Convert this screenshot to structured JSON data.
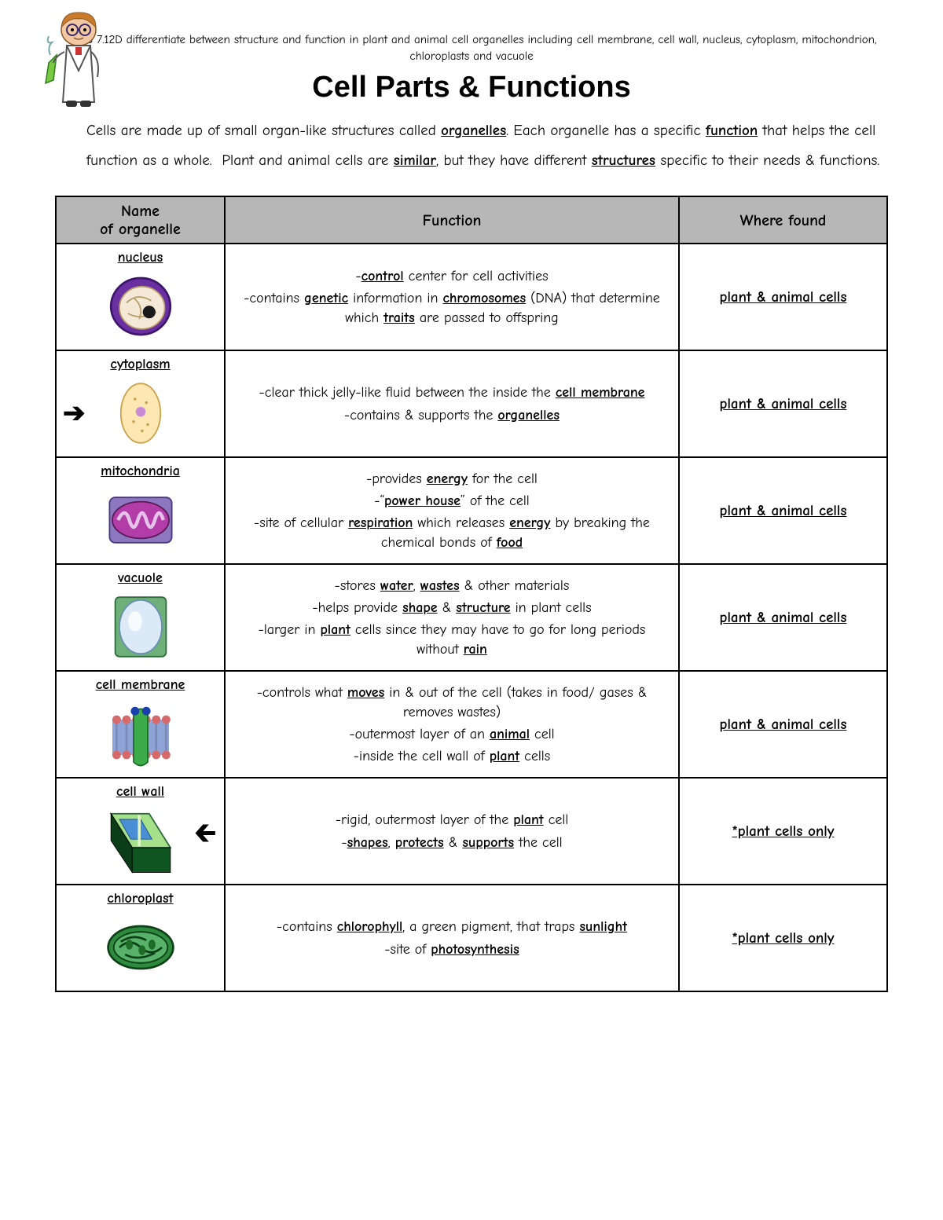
{
  "teks_line": "TEKS 7.12D differentiate between structure and function in plant and animal cell organelles including cell membrane, cell wall, nucleus, cytoplasm, mitochondrion, chloroplasts and vacuole",
  "title": "Cell Parts & Functions",
  "intro_html": "Cells are made up of small organ-like structures called <span class='ub'>organelles</span>. Each organelle has a specific <span class='ub'>function</span> that helps the cell function as a whole.&nbsp; Plant and animal cells are <span class='ub'>similar</span>, but they have different <span class='ub'>structures</span> specific to their needs & functions.",
  "columns": {
    "name": "Name of organelle",
    "function": "Function",
    "where": "Where found"
  },
  "rows": [
    {
      "name": "nucleus",
      "icon": "nucleus",
      "function_html": "<p>-<span class='ub'>control</span> center for cell activities</p><p>-contains <span class='ub'>genetic</span> information in <span class='ub'>chromosomes</span> (DNA) that determine which <span class='ub'>traits</span> are passed to offspring</p>",
      "where": "plant & animal cells"
    },
    {
      "name": "cytoplasm",
      "icon": "cytoplasm",
      "arrow": "right",
      "function_html": "<p>-clear thick jelly-like fluid between the inside the <span class='ub'>cell membrane</span></p><p>-contains & supports the <span class='ub'>organelles</span></p>",
      "where": "plant & animal cells"
    },
    {
      "name": "mitochondria",
      "icon": "mitochondria",
      "function_html": "<p>-provides <span class='ub'>energy</span> for the cell</p><p>-&ldquo;<span class='ub'>power house</span>&rdquo; of the cell</p><p>-site of cellular <span class='ub'>respiration</span> which releases <span class='ub'>energy</span> by breaking the chemical bonds of <span class='ub'>food</span></p>",
      "where": "plant & animal cells"
    },
    {
      "name": "vacuole",
      "icon": "vacuole",
      "function_html": "<p>-stores <span class='ub'>water</span>, <span class='ub'>wastes</span> & other materials</p><p>-helps provide <span class='ub'>shape</span> & <span class='ub'>structure</span> in plant cells</p><p>-larger in <span class='ub'>plant</span> cells since they may have to go for long periods without <span class='ub'>rain</span></p>",
      "where": "plant & animal cells"
    },
    {
      "name": "cell membrane",
      "icon": "membrane",
      "function_html": "<p>-controls what <span class='ub'>moves</span> in & out of the cell (takes in food/ gases & removes wastes)</p><p>-outermost layer of an <span class='ub'>animal</span> cell</p><p>-inside the cell wall of <span class='ub'>plant</span> cells</p>",
      "where": "plant & animal cells"
    },
    {
      "name": "cell wall",
      "icon": "cellwall",
      "arrow": "left",
      "function_html": "<p>-rigid, outermost layer of the <span class='ub'>plant</span> cell</p><p>-<span class='ub'>shapes</span>, <span class='ub'>protects</span> & <span class='ub'>supports</span> the cell</p>",
      "where": "*plant cells only"
    },
    {
      "name": "chloroplast",
      "icon": "chloroplast",
      "function_html": "<p>-contains <span class='ub'>chlorophyll</span>, a green pigment, that traps <span class='ub'>sunlight</span></p><p>-site of <span class='ub'>photosynthesis</span></p>",
      "where": "*plant cells only"
    }
  ],
  "style": {
    "page_bg": "#ffffff",
    "header_bg": "#b7b7b7",
    "border_color": "#000000",
    "title_font": "Arial",
    "body_font": "Comic Sans MS"
  }
}
